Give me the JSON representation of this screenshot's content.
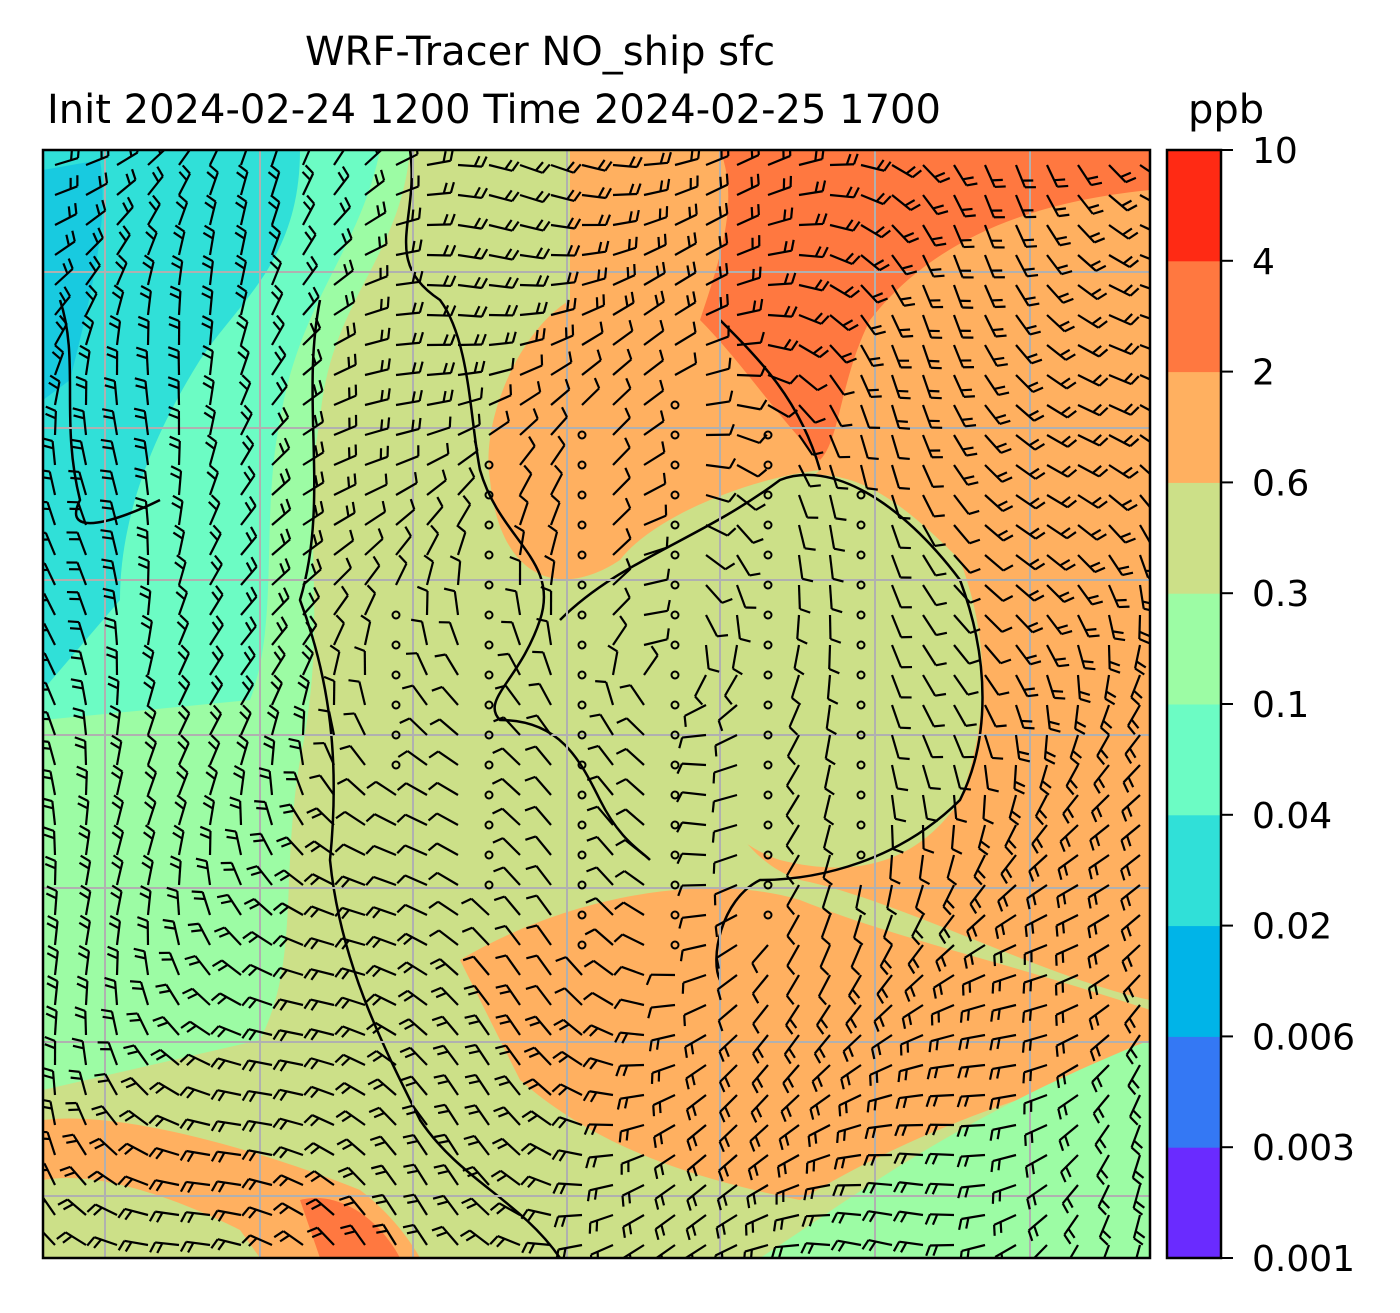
{
  "title_line1": "WRF-Tracer NO_ship sfc",
  "title_line2": "Init 2024-02-24 1200 Time 2024-02-25 1700",
  "units": "ppb",
  "chart_data": {
    "type": "filled-contour map with wind barbs",
    "variable": "NO_ship surface tracer",
    "colorbar": {
      "levels": [
        "0.001",
        "0.003",
        "0.006",
        "0.02",
        "0.04",
        "0.1",
        "0.3",
        "0.6",
        "2",
        "4",
        "10"
      ],
      "colors": [
        "#6a2bff",
        "#3478f4",
        "#00b4e8",
        "#30e0d8",
        "#6cfcc4",
        "#9cfca4",
        "#cce088",
        "#ffb060",
        "#ff7840",
        "#ff2a14"
      ]
    },
    "grid": true
  },
  "colors": {
    "grid": "#b0b0b0",
    "barb": "#000000"
  }
}
